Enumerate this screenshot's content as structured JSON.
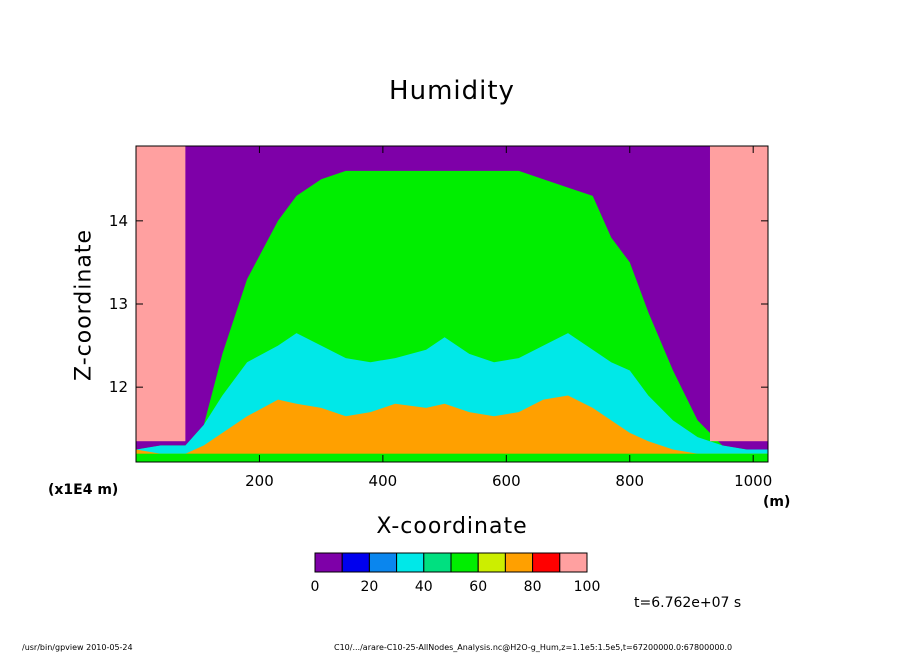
{
  "chart_data": {
    "type": "heatmap",
    "title": "Humidity",
    "xlabel": "X-coordinate",
    "ylabel": "Z-coordinate",
    "y_scale_label": "(x1E4 m)",
    "x_unit_label": "(m)",
    "xlim": [
      0,
      1024
    ],
    "ylim": [
      11.1,
      14.9
    ],
    "x_ticks": [
      200,
      400,
      600,
      800,
      1000
    ],
    "y_ticks": [
      12,
      13,
      14
    ],
    "legend_placement": "bottom-center",
    "levels": [
      0,
      10,
      20,
      30,
      40,
      50,
      60,
      70,
      80,
      90,
      100
    ],
    "colorbar_tick_labels": [
      "0",
      "20",
      "40",
      "60",
      "80",
      "100"
    ],
    "colors": [
      "#7e00a8",
      "#0000ee",
      "#0a86ee",
      "#00e8e8",
      "#00e080",
      "#00ee00",
      "#ccee00",
      "#ffa000",
      "#ff0000",
      "#ffa0a0",
      "#ffffff"
    ],
    "profile_x": [
      0,
      40,
      80,
      110,
      140,
      180,
      230,
      260,
      300,
      340,
      380,
      420,
      470,
      500,
      540,
      580,
      620,
      660,
      700,
      740,
      770,
      800,
      830,
      870,
      910,
      950,
      990,
      1024
    ],
    "dry_top": [
      11.25,
      11.3,
      11.3,
      11.55,
      12.4,
      13.3,
      14.0,
      14.3,
      14.5,
      14.6,
      14.6,
      14.6,
      14.6,
      14.6,
      14.6,
      14.6,
      14.6,
      14.5,
      14.4,
      14.3,
      13.8,
      13.5,
      12.9,
      12.2,
      11.6,
      11.3,
      11.25,
      11.25
    ],
    "transition_top": [
      11.25,
      11.3,
      11.3,
      11.55,
      11.9,
      12.3,
      12.5,
      12.65,
      12.5,
      12.35,
      12.3,
      12.35,
      12.45,
      12.6,
      12.4,
      12.3,
      12.35,
      12.5,
      12.65,
      12.45,
      12.3,
      12.2,
      11.9,
      11.6,
      11.4,
      11.3,
      11.25,
      11.25
    ],
    "moist_top": [
      11.25,
      11.2,
      11.2,
      11.3,
      11.45,
      11.65,
      11.85,
      11.8,
      11.75,
      11.65,
      11.7,
      11.8,
      11.75,
      11.8,
      11.7,
      11.65,
      11.7,
      11.85,
      11.9,
      11.75,
      11.6,
      11.45,
      11.35,
      11.25,
      11.2,
      11.2,
      11.2,
      11.2
    ],
    "surface_value": 55,
    "moist_value": 75,
    "transition_value": 35,
    "dry_value": 5,
    "left_column_value": 90,
    "right_column_value": 90,
    "time_label": "t=6.762e+07 s"
  },
  "footer": {
    "left": "/usr/bin/gpview   2010-05-24",
    "right": "C10/.../arare-C10-25-AllNodes_Analysis.nc@H2O-g_Hum,z=1.1e5:1.5e5,t=67200000.0:67800000.0"
  }
}
